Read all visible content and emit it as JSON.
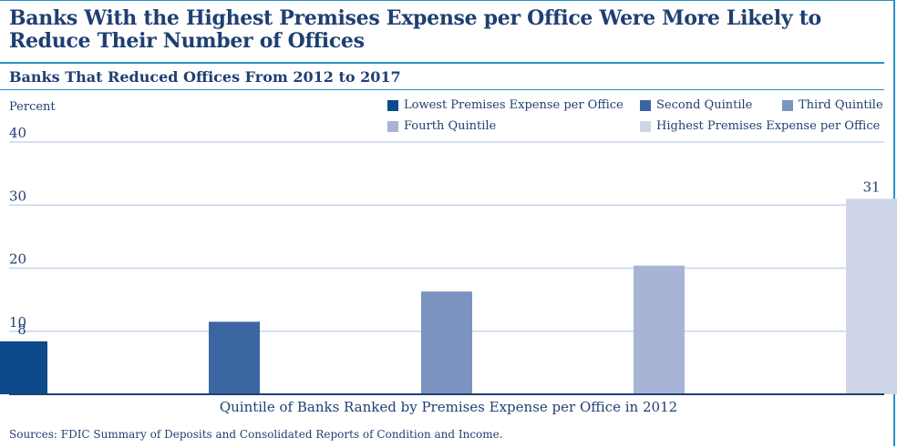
{
  "title": "Banks With the Highest Premises Expense per Office Were More Likely to Reduce Their Number of Offices",
  "subtitle": "Banks That Reduced Offices From 2012 to 2017",
  "source": "Sources: FDIC Summary of Deposits and Consolidated Reports of Condition and Income.",
  "chart_data": {
    "type": "bar",
    "title": "Banks That Reduced Offices From 2012 to 2017",
    "ylabel": "Percent",
    "xlabel": "Quintile of Banks Ranked by Premises Expense per Office in 2012",
    "ylim": [
      0,
      40
    ],
    "yticks": [
      0,
      10,
      20,
      30,
      40
    ],
    "grid": true,
    "legend_position": "top",
    "categories": [
      "Lowest Premises Expense per Office",
      "Second Quintile",
      "Third Quintile",
      "Fourth Quintile",
      "Highest Premises Expense per Office"
    ],
    "values": [
      8.4,
      11.5,
      16.3,
      20.4,
      31
    ],
    "data_labels": [
      "8",
      "",
      "",
      "",
      "31"
    ],
    "colors": [
      "#0c4a8c",
      "#3b66a2",
      "#7c92c0",
      "#a8b4d6",
      "#ced5e8"
    ]
  }
}
